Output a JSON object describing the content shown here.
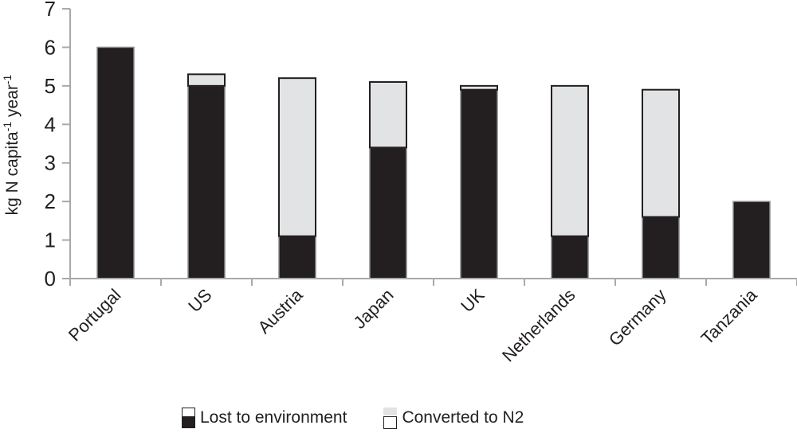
{
  "chart_data": {
    "type": "bar",
    "stacked": true,
    "title": "",
    "xlabel": "",
    "ylabel": "kg N capita-1 year-1",
    "ylabel_parts": {
      "a": "kg N capita",
      "sup1": "-1",
      "b": " year",
      "sup2": "-1"
    },
    "ylim": [
      0,
      7
    ],
    "yticks": [
      0,
      1,
      2,
      3,
      4,
      5,
      6,
      7
    ],
    "categories": [
      "Portugal",
      "US",
      "Austria",
      "Japan",
      "UK",
      "Netherlands",
      "Germany",
      "Tanzania"
    ],
    "series": [
      {
        "name": "Lost to environment",
        "color": "#231f20",
        "values": [
          6.0,
          5.0,
          1.1,
          3.4,
          4.9,
          1.1,
          1.6,
          2.0
        ]
      },
      {
        "name": "Converted to N2",
        "color": "#e2e3e4",
        "values": [
          0.0,
          0.3,
          4.1,
          1.7,
          0.1,
          3.9,
          3.3,
          0.0
        ]
      }
    ],
    "totals": [
      6.0,
      5.3,
      5.2,
      5.1,
      5.0,
      5.0,
      4.9,
      2.0
    ],
    "grid": false,
    "legend_position": "bottom"
  },
  "legend": {
    "lost_label": "Lost to environment",
    "converted_label": "Converted to N2"
  },
  "colors": {
    "axis": "#a7a9ac",
    "text": "#231f20"
  }
}
